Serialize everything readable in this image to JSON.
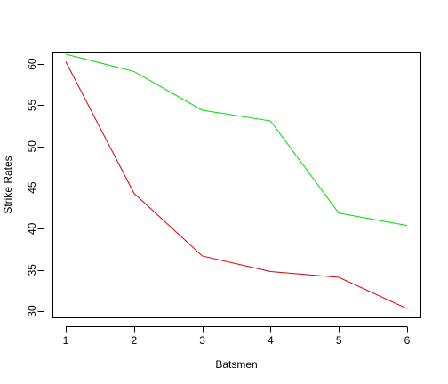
{
  "chart_data": {
    "type": "line",
    "title": "",
    "xlabel": "Batsmen",
    "ylabel": "Strike Rates",
    "x": [
      1,
      2,
      3,
      4,
      5,
      6
    ],
    "x_ticks": [
      1,
      2,
      3,
      4,
      5,
      6
    ],
    "y_ticks": [
      30,
      35,
      40,
      45,
      50,
      55,
      60
    ],
    "xlim": [
      1,
      6
    ],
    "ylim": [
      30,
      61.2
    ],
    "grid": false,
    "legend": "none",
    "series": [
      {
        "color": "#00dd00",
        "values": [
          61.2,
          59.1,
          54.4,
          53.1,
          41.9,
          40.4
        ]
      },
      {
        "color": "#dd0000",
        "values": [
          60.3,
          44.3,
          36.7,
          34.8,
          34.1,
          30.3
        ]
      }
    ]
  }
}
